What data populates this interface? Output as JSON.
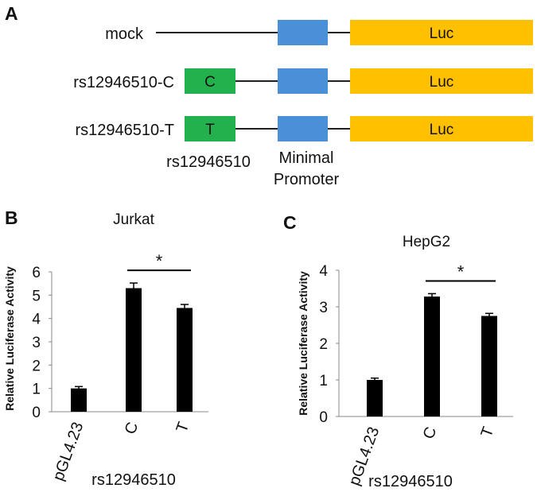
{
  "panel_a": {
    "letter": "A",
    "colors": {
      "enhancer": "#22b14c",
      "promoter": "#4a90d9",
      "luc": "#ffc000",
      "line": "#000000"
    },
    "constructs": [
      {
        "label": "mock",
        "enhancer": "",
        "promoter": "",
        "luc": "Luc"
      },
      {
        "label": "rs12946510-C",
        "enhancer": "C",
        "promoter": "",
        "luc": "Luc"
      },
      {
        "label": "rs12946510-T",
        "enhancer": "T",
        "promoter": "",
        "luc": "Luc"
      }
    ],
    "captions": {
      "snp": "rs12946510",
      "promoter_line1": "Minimal",
      "promoter_line2": "Promoter"
    }
  },
  "chart_data": [
    {
      "panel": "B",
      "type": "bar",
      "title": "Jurkat",
      "ylabel": "Relative Luciferase Activity",
      "xlabel": "rs12946510",
      "categories": [
        "pGL4.23",
        "C",
        "T"
      ],
      "values": [
        1.0,
        5.3,
        4.45
      ],
      "errors": [
        0.08,
        0.22,
        0.15
      ],
      "ylim": [
        0,
        6
      ],
      "yticks": [
        "0",
        "1",
        "2",
        "3",
        "4",
        "5",
        "6"
      ],
      "bar_color": "#000000",
      "significance": {
        "from": "C",
        "to": "T",
        "label": "*"
      }
    },
    {
      "panel": "C",
      "type": "bar",
      "title": "HepG2",
      "ylabel": "Relative Luciferase Activity",
      "xlabel": "rs12946510",
      "categories": [
        "pGL4.23",
        "C",
        "T"
      ],
      "values": [
        1.0,
        3.28,
        2.75
      ],
      "errors": [
        0.05,
        0.08,
        0.07
      ],
      "ylim": [
        0,
        4
      ],
      "yticks": [
        "0",
        "1",
        "2",
        "3",
        "4"
      ],
      "bar_color": "#000000",
      "significance": {
        "from": "C",
        "to": "T",
        "label": "*"
      }
    }
  ]
}
